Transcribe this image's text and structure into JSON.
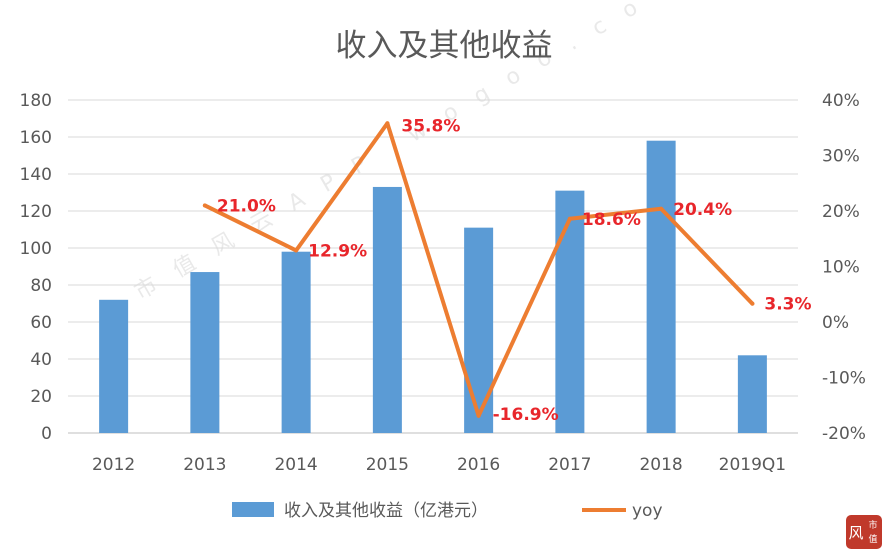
{
  "chart_data": {
    "type": "bar",
    "title": "收入及其他收益",
    "categories": [
      "2012",
      "2013",
      "2014",
      "2015",
      "2016",
      "2017",
      "2018",
      "2019Q1"
    ],
    "series": [
      {
        "name": "收入及其他收益（亿港元）",
        "type": "bar",
        "axis": "left",
        "color": "#5b9bd5",
        "values": [
          72,
          87,
          98,
          133,
          111,
          131,
          158,
          42
        ]
      },
      {
        "name": "yoy",
        "type": "line",
        "axis": "right",
        "color": "#ed7d31",
        "values": [
          null,
          21.0,
          12.9,
          35.8,
          -16.9,
          18.6,
          20.4,
          3.3
        ],
        "labels": [
          "",
          "21.0%",
          "12.9%",
          "35.8%",
          "-16.9%",
          "18.6%",
          "20.4%",
          "3.3%"
        ]
      }
    ],
    "y_left": {
      "min": 0,
      "max": 180,
      "ticks": [
        "0",
        "20",
        "40",
        "60",
        "80",
        "100",
        "120",
        "140",
        "160",
        "180"
      ]
    },
    "y_right": {
      "min": -20,
      "max": 40,
      "ticks": [
        "-20%",
        "-10%",
        "0%",
        "10%",
        "20%",
        "30%",
        "40%"
      ]
    },
    "grid": true,
    "legend": "bottom",
    "label_color": "#e8262b"
  },
  "watermark": {
    "text": "市值风云APP wogoo.com"
  },
  "seal": {
    "chars": [
      "市",
      "值"
    ],
    "glyph": "风",
    "color": "#c0392b"
  }
}
